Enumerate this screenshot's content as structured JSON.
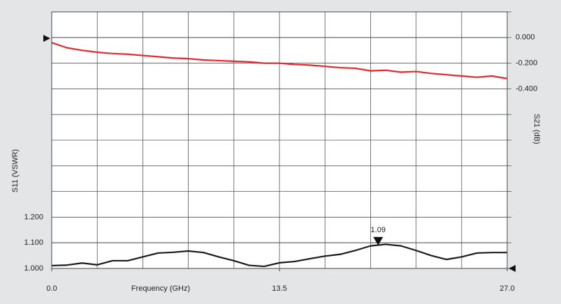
{
  "chart_data": {
    "type": "line",
    "x_label": "Frequency (GHz)",
    "y_label": "S11 (VSWR)",
    "y2_label": "S21 (dB)",
    "x": [
      0,
      0.9,
      1.8,
      2.7,
      3.6,
      4.5,
      5.4,
      6.3,
      7.2,
      8.1,
      9,
      9.9,
      10.8,
      11.7,
      12.6,
      13.5,
      14.4,
      15.3,
      16.2,
      17.1,
      18,
      18.9,
      19.8,
      20.7,
      21.6,
      22.5,
      23.4,
      24.3,
      25.2,
      26.1,
      27
    ],
    "series": [
      {
        "color": "#1a1a1a",
        "axis": "y",
        "values": [
          1.011,
          1.013,
          1.021,
          1.014,
          1.03,
          1.03,
          1.045,
          1.06,
          1.063,
          1.068,
          1.062,
          1.045,
          1.03,
          1.012,
          1.008,
          1.022,
          1.027,
          1.038,
          1.048,
          1.055,
          1.07,
          1.088,
          1.094,
          1.088,
          1.07,
          1.05,
          1.035,
          1.045,
          1.06,
          1.062,
          1.062
        ]
      },
      {
        "color": "#e8262d",
        "axis": "y2",
        "values": [
          -0.04,
          -0.08,
          -0.1,
          -0.115,
          -0.125,
          -0.13,
          -0.14,
          -0.15,
          -0.16,
          -0.165,
          -0.175,
          -0.18,
          -0.185,
          -0.19,
          -0.2,
          -0.2,
          -0.21,
          -0.215,
          -0.225,
          -0.235,
          -0.24,
          -0.26,
          -0.255,
          -0.27,
          -0.265,
          -0.28,
          -0.29,
          -0.3,
          -0.31,
          -0.3,
          -0.32
        ]
      }
    ],
    "marker": {
      "x": 19.35,
      "value": 1.09
    },
    "xlim": [
      0,
      27
    ],
    "xticks": [
      {
        "value": 0,
        "label": "0.0"
      },
      13.5,
      {
        "value": 27,
        "label": "27.0"
      }
    ],
    "ylim": [
      1,
      2
    ],
    "yticks": [
      {
        "value": 1,
        "label": "1.000"
      },
      {
        "value": 1.1,
        "label": "1.100"
      },
      {
        "value": 1.2,
        "label": "1.200"
      }
    ],
    "y2lim": [
      -1.8,
      0.2
    ],
    "y2ticks": [
      {
        "value": 0,
        "label": "0.000"
      },
      {
        "value": -0.2,
        "label": "-0.200"
      },
      {
        "value": -0.4,
        "label": "-0.400"
      }
    ],
    "grid": true
  }
}
